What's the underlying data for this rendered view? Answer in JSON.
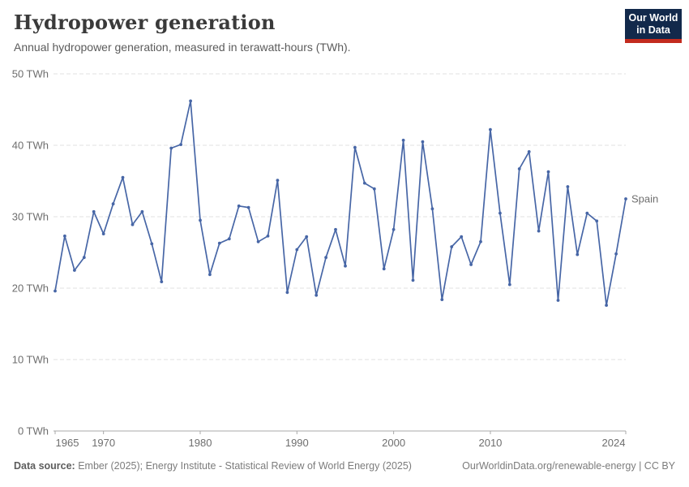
{
  "header": {
    "title": "Hydropower generation",
    "subtitle": "Annual hydropower generation, measured in terawatt-hours (TWh).",
    "logo": {
      "line1": "Our World",
      "line2": "in Data",
      "bg_color": "#12294b",
      "bar_color": "#c32b1e"
    }
  },
  "chart_data": {
    "type": "line",
    "title": "Hydropower generation",
    "entity": "Spain",
    "series_label": "Spain",
    "unit": "TWh",
    "line_color": "#4766a6",
    "grid": true,
    "ylim": [
      0,
      50
    ],
    "yticks": [
      0,
      10,
      20,
      30,
      40,
      50
    ],
    "xticks": [
      1965,
      1970,
      1980,
      1990,
      2000,
      2010,
      2024
    ],
    "x": [
      1965,
      1966,
      1967,
      1968,
      1969,
      1970,
      1971,
      1972,
      1973,
      1974,
      1975,
      1976,
      1977,
      1978,
      1979,
      1980,
      1981,
      1982,
      1983,
      1984,
      1985,
      1986,
      1987,
      1988,
      1989,
      1990,
      1991,
      1992,
      1993,
      1994,
      1995,
      1996,
      1997,
      1998,
      1999,
      2000,
      2001,
      2002,
      2003,
      2004,
      2005,
      2006,
      2007,
      2008,
      2009,
      2010,
      2011,
      2012,
      2013,
      2014,
      2015,
      2016,
      2017,
      2018,
      2019,
      2020,
      2021,
      2022,
      2023,
      2024
    ],
    "values": [
      19.6,
      27.3,
      22.5,
      24.3,
      30.7,
      27.6,
      31.8,
      35.5,
      28.9,
      30.7,
      26.2,
      20.9,
      39.6,
      40.1,
      46.2,
      29.5,
      21.9,
      26.3,
      26.9,
      31.5,
      31.3,
      26.5,
      27.3,
      35.1,
      19.4,
      25.4,
      27.2,
      19.0,
      24.3,
      28.2,
      23.1,
      39.7,
      34.7,
      33.9,
      22.7,
      28.2,
      40.7,
      21.1,
      40.5,
      31.1,
      18.4,
      25.8,
      27.2,
      23.3,
      26.5,
      42.2,
      30.5,
      20.5,
      36.7,
      39.1,
      28.0,
      36.3,
      18.3,
      34.2,
      24.7,
      30.5,
      29.4,
      17.6,
      24.8,
      32.5
    ]
  },
  "footer": {
    "datasource_label": "Data source:",
    "datasource_text": " Ember (2025); Energy Institute - Statistical Review of World Energy (2025)",
    "rights": "OurWorldinData.org/renewable-energy | CC BY"
  }
}
